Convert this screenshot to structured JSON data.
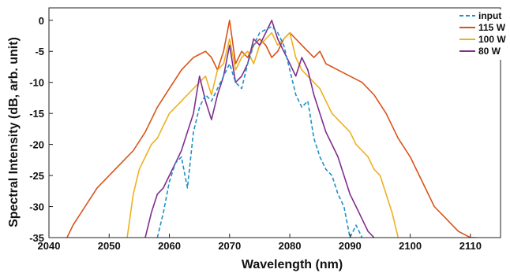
{
  "chart_data": {
    "type": "line",
    "title": "",
    "xlabel": "Wavelength (nm)",
    "ylabel": "Spectral Intensity (dB, arb. unit)",
    "xlim": [
      2040,
      2115
    ],
    "ylim": [
      -35,
      2
    ],
    "xticks": [
      "2040",
      "2050",
      "2060",
      "2070",
      "2080",
      "2090",
      "2100",
      "2110"
    ],
    "yticks": [
      "0",
      "-5",
      "-10",
      "-15",
      "-20",
      "-25",
      "-30",
      "-35"
    ],
    "grid": false,
    "legend_position": "top-right",
    "series": [
      {
        "name": "input",
        "color": "#1f8fc9",
        "dash": "dashed",
        "x": [
          2058,
          2059,
          2060,
          2061,
          2062,
          2063,
          2064,
          2065,
          2066,
          2067,
          2068,
          2069,
          2070,
          2071,
          2072,
          2073,
          2074,
          2075,
          2076,
          2077,
          2078,
          2079,
          2080,
          2081,
          2082,
          2083,
          2084,
          2085,
          2086,
          2087,
          2088,
          2089,
          2090,
          2091,
          2092
        ],
        "y": [
          -35,
          -31,
          -26,
          -23,
          -22,
          -27,
          -18,
          -14,
          -12,
          -13,
          -11,
          -9,
          -7,
          -10,
          -11,
          -7,
          -4,
          -2,
          -1.5,
          -1,
          -2,
          -4,
          -8,
          -12,
          -14,
          -13,
          -19,
          -22,
          -24,
          -25,
          -28,
          -30,
          -35,
          -33,
          -35
        ]
      },
      {
        "name": "115 W",
        "color": "#d95319",
        "dash": "solid",
        "x": [
          2043,
          2044,
          2046,
          2048,
          2050,
          2052,
          2054,
          2056,
          2058,
          2060,
          2062,
          2064,
          2066,
          2067,
          2068,
          2069,
          2070,
          2071,
          2072,
          2073,
          2074,
          2075,
          2076,
          2077,
          2078,
          2079,
          2080,
          2081,
          2082,
          2083,
          2084,
          2085,
          2086,
          2088,
          2090,
          2092,
          2094,
          2096,
          2098,
          2100,
          2102,
          2104,
          2106,
          2108,
          2110,
          2111
        ],
        "y": [
          -35,
          -33,
          -30,
          -27,
          -25,
          -23,
          -21,
          -18,
          -14,
          -11,
          -8,
          -6,
          -5,
          -6,
          -8,
          -5,
          0,
          -7,
          -5,
          -6,
          -4,
          -3,
          -4,
          -6,
          -5,
          -3,
          -2,
          -3,
          -4,
          -5,
          -6,
          -5,
          -7,
          -8,
          -9,
          -10,
          -12,
          -15,
          -19,
          -22,
          -26,
          -30,
          -32,
          -34,
          -35,
          -35
        ]
      },
      {
        "name": "100 W",
        "color": "#edb120",
        "dash": "solid",
        "x": [
          2053,
          2054,
          2055,
          2056,
          2057,
          2058,
          2059,
          2060,
          2061,
          2062,
          2063,
          2064,
          2065,
          2066,
          2067,
          2068,
          2069,
          2070,
          2071,
          2072,
          2073,
          2074,
          2075,
          2076,
          2077,
          2078,
          2079,
          2080,
          2081,
          2082,
          2083,
          2084,
          2085,
          2086,
          2087,
          2088,
          2089,
          2090,
          2091,
          2092,
          2093,
          2094,
          2095,
          2096,
          2097,
          2098
        ],
        "y": [
          -35,
          -28,
          -24,
          -22,
          -20,
          -19,
          -17,
          -15,
          -14,
          -13,
          -12,
          -11,
          -10,
          -9,
          -12,
          -8,
          -7,
          -3,
          -8,
          -6,
          -5,
          -7,
          -4,
          -3,
          -2,
          -4,
          -3,
          -2,
          -6,
          -8,
          -9,
          -10,
          -11,
          -13,
          -15,
          -16,
          -17,
          -18,
          -20,
          -21,
          -22,
          -24,
          -25,
          -28,
          -31,
          -35
        ]
      },
      {
        "name": "80 W",
        "color": "#7e2f8e",
        "dash": "solid",
        "x": [
          2056,
          2057,
          2058,
          2059,
          2060,
          2061,
          2062,
          2063,
          2064,
          2065,
          2066,
          2067,
          2068,
          2069,
          2070,
          2071,
          2072,
          2073,
          2074,
          2075,
          2076,
          2077,
          2078,
          2079,
          2080,
          2081,
          2082,
          2083,
          2084,
          2085,
          2086,
          2087,
          2088,
          2089,
          2090,
          2091,
          2092,
          2093,
          2094
        ],
        "y": [
          -35,
          -31,
          -28,
          -27,
          -25,
          -23,
          -21,
          -18,
          -15,
          -9,
          -13,
          -16,
          -12,
          -9,
          -4,
          -10,
          -9,
          -7,
          -3,
          -4,
          -2,
          0,
          -3,
          -5,
          -7,
          -9,
          -6,
          -8,
          -12,
          -15,
          -18,
          -20,
          -22,
          -25,
          -28,
          -30,
          -32,
          -34,
          -35
        ]
      }
    ]
  }
}
